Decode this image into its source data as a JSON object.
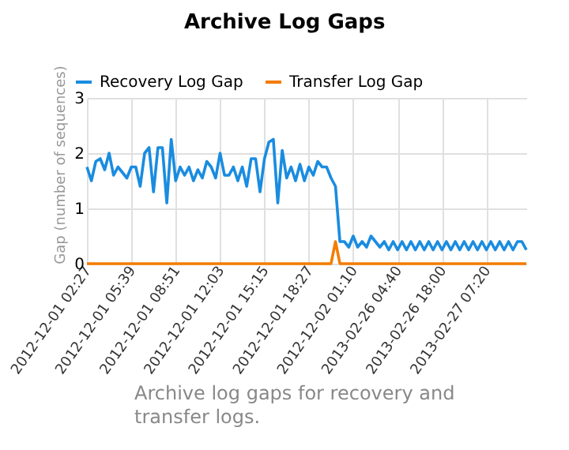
{
  "chart_data": {
    "type": "line",
    "title": "Archive Log Gaps",
    "ylabel": "Gap (number of sequences)",
    "categories": [
      "2012-12-01 02:27",
      null,
      null,
      null,
      null,
      null,
      null,
      null,
      null,
      null,
      "2012-12-01 05:39",
      null,
      null,
      null,
      null,
      null,
      null,
      null,
      null,
      null,
      "2012-12-01 08:51",
      null,
      null,
      null,
      null,
      null,
      null,
      null,
      null,
      null,
      "2012-12-01 12:03",
      null,
      null,
      null,
      null,
      null,
      null,
      null,
      null,
      null,
      "2012-12-01 15:15",
      null,
      null,
      null,
      null,
      null,
      null,
      null,
      null,
      null,
      "2012-12-01 18:27",
      null,
      null,
      null,
      null,
      null,
      null,
      null,
      null,
      null,
      "2012-12-02 01:10",
      null,
      null,
      null,
      null,
      null,
      null,
      null,
      null,
      null,
      "2013-02-26 04:40",
      null,
      null,
      null,
      null,
      null,
      null,
      null,
      null,
      null,
      "2013-02-26 18:00",
      null,
      null,
      null,
      null,
      null,
      null,
      null,
      null,
      null,
      "2013-02-27 07:20",
      null,
      null,
      null,
      null,
      null,
      null,
      null,
      null,
      null
    ],
    "series": [
      {
        "name": "Recovery Log Gap",
        "color": "#1a8ce0",
        "values": [
          1.75,
          1.5,
          1.85,
          1.9,
          1.7,
          2.0,
          1.6,
          1.75,
          1.65,
          1.55,
          1.75,
          1.75,
          1.4,
          2.0,
          2.1,
          1.3,
          2.1,
          2.1,
          1.1,
          2.25,
          1.5,
          1.75,
          1.6,
          1.75,
          1.5,
          1.7,
          1.55,
          1.85,
          1.75,
          1.55,
          2.0,
          1.6,
          1.6,
          1.75,
          1.5,
          1.75,
          1.4,
          1.9,
          1.9,
          1.3,
          1.9,
          2.2,
          2.25,
          1.1,
          2.05,
          1.55,
          1.75,
          1.5,
          1.8,
          1.5,
          1.75,
          1.6,
          1.85,
          1.75,
          1.75,
          1.55,
          1.4,
          0.4,
          0.4,
          0.3,
          0.5,
          0.3,
          0.4,
          0.3,
          0.5,
          0.4,
          0.3,
          0.4,
          0.25,
          0.4,
          0.25,
          0.4,
          0.25,
          0.4,
          0.25,
          0.4,
          0.25,
          0.4,
          0.25,
          0.4,
          0.25,
          0.4,
          0.25,
          0.4,
          0.25,
          0.4,
          0.25,
          0.4,
          0.25,
          0.4,
          0.25,
          0.4,
          0.25,
          0.4,
          0.25,
          0.4,
          0.25,
          0.4,
          0.4,
          0.25
        ]
      },
      {
        "name": "Transfer Log Gap",
        "color": "#f57c00",
        "values": [
          0,
          0,
          0,
          0,
          0,
          0,
          0,
          0,
          0,
          0,
          0,
          0,
          0,
          0,
          0,
          0,
          0,
          0,
          0,
          0,
          0,
          0,
          0,
          0,
          0,
          0,
          0,
          0,
          0,
          0,
          0,
          0,
          0,
          0,
          0,
          0,
          0,
          0,
          0,
          0,
          0,
          0,
          0,
          0,
          0,
          0,
          0,
          0,
          0,
          0,
          0,
          0,
          0,
          0,
          0,
          0,
          0.4,
          0,
          0,
          0,
          0,
          0,
          0,
          0,
          0,
          0,
          0,
          0,
          0,
          0,
          0,
          0,
          0,
          0,
          0,
          0,
          0,
          0,
          0,
          0,
          0,
          0,
          0,
          0,
          0,
          0,
          0,
          0,
          0,
          0,
          0,
          0,
          0,
          0,
          0,
          0,
          0,
          0,
          0,
          0
        ]
      }
    ],
    "ylim": [
      0,
      3
    ],
    "yticks": [
      0,
      1,
      2,
      3
    ],
    "grid": true,
    "legend": "top left",
    "marker": "none",
    "annotations": [
      "Archive log gaps for recovery and transfer logs."
    ]
  }
}
